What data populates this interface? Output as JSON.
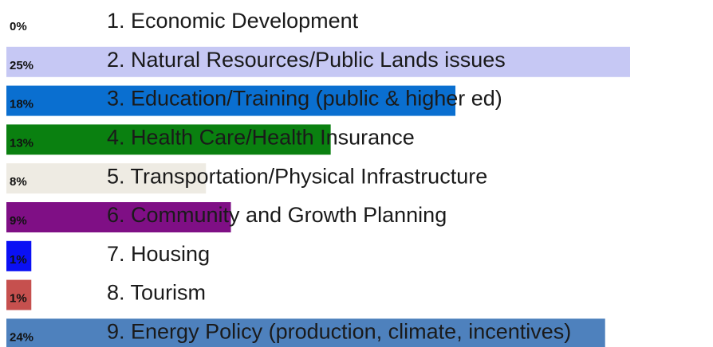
{
  "chart_data": {
    "type": "bar",
    "categories": [
      "1. Economic Development",
      "2. Natural Resources/Public Lands issues",
      "3. Education/Training (public & higher ed)",
      "4. Health Care/Health Insurance",
      "5. Transportation/Physical Infrastructure",
      "6. Community and Growth Planning",
      "7. Housing",
      "8. Tourism",
      "9. Energy Policy (production, climate, incentives)"
    ],
    "values": [
      0,
      25,
      18,
      13,
      8,
      9,
      1,
      1,
      24
    ],
    "value_labels": [
      "0%",
      "25%",
      "18%",
      "13%",
      "8%",
      "9%",
      "1%",
      "1%",
      "24%"
    ],
    "colors": [
      "#ffffff",
      "#c6c8f4",
      "#0a6fd0",
      "#0a8010",
      "#eeebe3",
      "#7f0f85",
      "#0a10f4",
      "#c6504e",
      "#4e81bd"
    ]
  }
}
